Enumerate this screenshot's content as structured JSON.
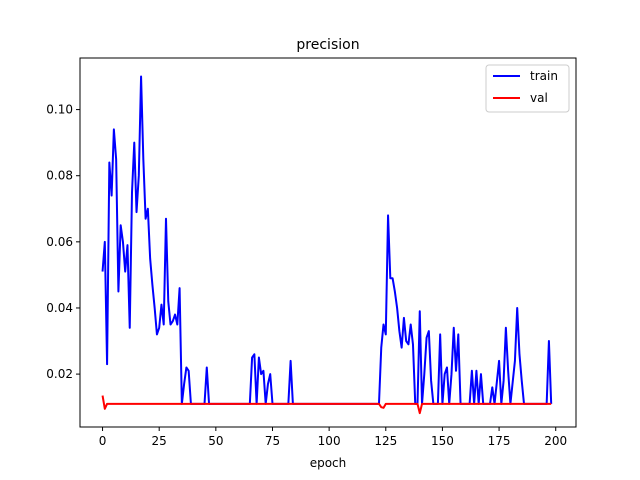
{
  "chart_data": {
    "type": "line",
    "title": "precision",
    "xlabel": "epoch",
    "ylabel": "",
    "xlim": [
      -9.95,
      208.95
    ],
    "ylim": [
      0.004,
      0.1156
    ],
    "xticks": [
      0,
      25,
      50,
      75,
      100,
      125,
      150,
      175,
      200
    ],
    "yticks": [
      0.02,
      0.04,
      0.06,
      0.08,
      0.1
    ],
    "ytick_labels": [
      "0.02",
      "0.04",
      "0.06",
      "0.08",
      "0.10"
    ],
    "xtick_labels": [
      "0",
      "25",
      "50",
      "75",
      "100",
      "125",
      "150",
      "175",
      "200"
    ],
    "legend": {
      "position": "top-right"
    },
    "series": [
      {
        "name": "train",
        "color": "#0000ff",
        "points": [
          [
            0,
            0.051
          ],
          [
            1,
            0.06
          ],
          [
            2,
            0.023
          ],
          [
            3,
            0.084
          ],
          [
            4,
            0.074
          ],
          [
            5,
            0.094
          ],
          [
            6,
            0.085
          ],
          [
            7,
            0.045
          ],
          [
            8,
            0.065
          ],
          [
            9,
            0.06
          ],
          [
            10,
            0.051
          ],
          [
            11,
            0.059
          ],
          [
            12,
            0.034
          ],
          [
            13,
            0.075
          ],
          [
            14,
            0.09
          ],
          [
            15,
            0.069
          ],
          [
            16,
            0.08
          ],
          [
            17,
            0.11
          ],
          [
            18,
            0.085
          ],
          [
            19,
            0.067
          ],
          [
            20,
            0.07
          ],
          [
            21,
            0.055
          ],
          [
            22,
            0.047
          ],
          [
            23,
            0.04
          ],
          [
            24,
            0.032
          ],
          [
            25,
            0.034
          ],
          [
            26,
            0.041
          ],
          [
            27,
            0.035
          ],
          [
            28,
            0.067
          ],
          [
            29,
            0.042
          ],
          [
            30,
            0.035
          ],
          [
            31,
            0.036
          ],
          [
            32,
            0.038
          ],
          [
            33,
            0.035
          ],
          [
            34,
            0.046
          ],
          [
            35,
            0.011
          ],
          [
            36,
            0.017
          ],
          [
            37,
            0.022
          ],
          [
            38,
            0.021
          ],
          [
            39,
            0.011
          ],
          [
            40,
            0.011
          ],
          [
            45,
            0.011
          ],
          [
            46,
            0.022
          ],
          [
            47,
            0.011
          ],
          [
            65,
            0.011
          ],
          [
            66,
            0.025
          ],
          [
            67,
            0.026
          ],
          [
            68,
            0.011
          ],
          [
            69,
            0.025
          ],
          [
            70,
            0.02
          ],
          [
            71,
            0.021
          ],
          [
            72,
            0.011
          ],
          [
            73,
            0.017
          ],
          [
            74,
            0.02
          ],
          [
            75,
            0.011
          ],
          [
            82,
            0.011
          ],
          [
            83,
            0.024
          ],
          [
            84,
            0.011
          ],
          [
            122,
            0.011
          ],
          [
            123,
            0.028
          ],
          [
            124,
            0.035
          ],
          [
            125,
            0.032
          ],
          [
            126,
            0.068
          ],
          [
            127,
            0.049
          ],
          [
            128,
            0.049
          ],
          [
            129,
            0.045
          ],
          [
            130,
            0.04
          ],
          [
            131,
            0.033
          ],
          [
            132,
            0.028
          ],
          [
            133,
            0.037
          ],
          [
            134,
            0.03
          ],
          [
            135,
            0.029
          ],
          [
            136,
            0.035
          ],
          [
            137,
            0.029
          ],
          [
            138,
            0.011
          ],
          [
            139,
            0.011
          ],
          [
            140,
            0.039
          ],
          [
            141,
            0.011
          ],
          [
            142,
            0.02
          ],
          [
            143,
            0.031
          ],
          [
            144,
            0.033
          ],
          [
            145,
            0.018
          ],
          [
            146,
            0.011
          ],
          [
            148,
            0.011
          ],
          [
            149,
            0.032
          ],
          [
            150,
            0.011
          ],
          [
            151,
            0.02
          ],
          [
            152,
            0.022
          ],
          [
            153,
            0.011
          ],
          [
            154,
            0.02
          ],
          [
            155,
            0.034
          ],
          [
            156,
            0.021
          ],
          [
            157,
            0.032
          ],
          [
            158,
            0.011
          ],
          [
            162,
            0.011
          ],
          [
            163,
            0.021
          ],
          [
            164,
            0.011
          ],
          [
            165,
            0.021
          ],
          [
            166,
            0.011
          ],
          [
            167,
            0.02
          ],
          [
            168,
            0.011
          ],
          [
            171,
            0.011
          ],
          [
            172,
            0.016
          ],
          [
            173,
            0.011
          ],
          [
            175,
            0.024
          ],
          [
            176,
            0.011
          ],
          [
            177,
            0.018
          ],
          [
            178,
            0.034
          ],
          [
            179,
            0.021
          ],
          [
            180,
            0.011
          ],
          [
            182,
            0.024
          ],
          [
            183,
            0.04
          ],
          [
            184,
            0.026
          ],
          [
            185,
            0.018
          ],
          [
            186,
            0.011
          ],
          [
            196,
            0.011
          ],
          [
            197,
            0.03
          ],
          [
            198,
            0.011
          ]
        ]
      },
      {
        "name": "val",
        "color": "#ff0000",
        "points": [
          [
            0,
            0.0135
          ],
          [
            1,
            0.0095
          ],
          [
            2,
            0.011
          ],
          [
            122,
            0.011
          ],
          [
            123,
            0.01
          ],
          [
            124,
            0.0098
          ],
          [
            125,
            0.011
          ],
          [
            139,
            0.011
          ],
          [
            140,
            0.0082
          ],
          [
            141,
            0.011
          ],
          [
            198,
            0.011
          ]
        ]
      }
    ]
  }
}
